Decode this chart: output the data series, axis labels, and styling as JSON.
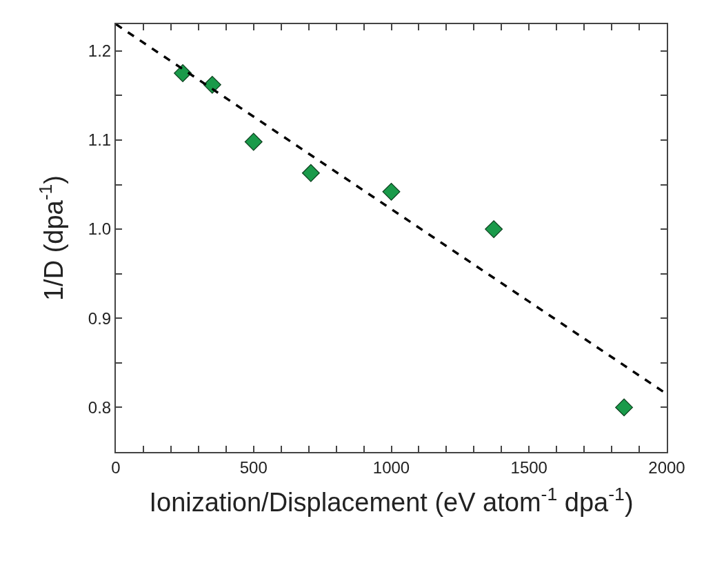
{
  "chart_data": {
    "type": "scatter",
    "xlabel": "Ionization/Displacement (eV atom$^{-1}$ dpa$^{-1}$)",
    "ylabel": "1/D (dpa$^{-1}$)",
    "xlim": [
      0,
      2000
    ],
    "ylim": [
      0.75,
      1.23
    ],
    "xticks": [
      0,
      {
        "value": 100,
        "label": null
      },
      {
        "value": 200,
        "label": null
      },
      {
        "value": 300,
        "label": null
      },
      {
        "value": 400,
        "label": null
      },
      500,
      {
        "value": 600,
        "label": null
      },
      {
        "value": 700,
        "label": null
      },
      {
        "value": 800,
        "label": null
      },
      {
        "value": 900,
        "label": null
      },
      1000,
      {
        "value": 1100,
        "label": null
      },
      {
        "value": 1200,
        "label": null
      },
      {
        "value": 1300,
        "label": null
      },
      {
        "value": 1400,
        "label": null
      },
      1500,
      {
        "value": 1600,
        "label": null
      },
      {
        "value": 1700,
        "label": null
      },
      {
        "value": 1800,
        "label": null
      },
      {
        "value": 1900,
        "label": null
      },
      2000
    ],
    "yticks": [
      {
        "value": 0.8,
        "label": "0.8"
      },
      {
        "value": 0.85,
        "label": null
      },
      {
        "value": 0.9,
        "label": "0.9"
      },
      {
        "value": 0.95,
        "label": null
      },
      {
        "value": 1.0,
        "label": "1.0"
      },
      {
        "value": 1.05,
        "label": null
      },
      {
        "value": 1.1,
        "label": "1.1"
      },
      {
        "value": 1.15,
        "label": null
      },
      {
        "value": 1.2,
        "label": "1.2"
      }
    ],
    "grid": false,
    "series": [
      {
        "marker": "diamond",
        "color": "#1a9a4a",
        "x": [
          243,
          350,
          500,
          708,
          1000,
          1372,
          1845
        ],
        "values": [
          1.175,
          1.162,
          1.098,
          1.063,
          1.042,
          1.0,
          0.8
        ]
      },
      {
        "type": "line",
        "marker": "none",
        "line_style": "dashed",
        "color": "#000000",
        "x": [
          0,
          2000
        ],
        "values": [
          1.23,
          0.815
        ]
      }
    ]
  }
}
